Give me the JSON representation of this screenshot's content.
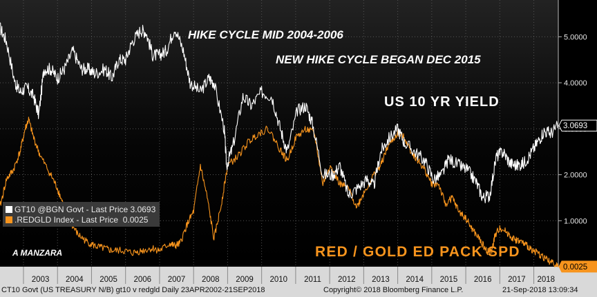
{
  "chart_data": {
    "type": "line",
    "x_range": [
      "2002-04-23",
      "2018-09-21"
    ],
    "x_tick_labels": [
      "2003",
      "2004",
      "2005",
      "2006",
      "2007",
      "2008",
      "2009",
      "2010",
      "2011",
      "2012",
      "2013",
      "2014",
      "2015",
      "2016",
      "2017",
      "2018"
    ],
    "y_ticks": [
      "5.0000",
      "4.0000",
      "3.0000",
      "2.0000",
      "1.0000"
    ],
    "ylim": [
      0,
      5.8
    ],
    "series": [
      {
        "name": "GT10 @BGN Govt - Last Price 3.0693",
        "color": "#ffffff",
        "last_value_label": "3.0693",
        "last_value": 3.0693,
        "x": [
          2002.31,
          2002.5,
          2002.75,
          2002.9,
          2003.1,
          2003.3,
          2003.45,
          2003.6,
          2003.8,
          2004.0,
          2004.2,
          2004.45,
          2004.7,
          2004.9,
          2005.1,
          2005.4,
          2005.6,
          2005.8,
          2006.0,
          2006.2,
          2006.45,
          2006.6,
          2006.8,
          2007.0,
          2007.2,
          2007.45,
          2007.7,
          2007.9,
          2008.2,
          2008.45,
          2008.6,
          2008.9,
          2008.97,
          2009.15,
          2009.45,
          2009.7,
          2010.0,
          2010.3,
          2010.55,
          2010.75,
          2011.05,
          2011.3,
          2011.5,
          2011.8,
          2012.1,
          2012.3,
          2012.55,
          2012.8,
          2013.1,
          2013.3,
          2013.5,
          2013.7,
          2014.0,
          2014.2,
          2014.5,
          2014.8,
          2015.05,
          2015.3,
          2015.5,
          2015.8,
          2016.05,
          2016.3,
          2016.5,
          2016.7,
          2016.9,
          2017.1,
          2017.3,
          2017.5,
          2017.7,
          2017.9,
          2018.1,
          2018.3,
          2018.5,
          2018.72
        ],
        "values": [
          5.2,
          4.9,
          4.0,
          3.8,
          3.9,
          3.7,
          3.3,
          4.3,
          4.3,
          4.1,
          4.3,
          4.7,
          4.3,
          4.3,
          4.2,
          4.3,
          4.1,
          4.5,
          4.5,
          4.9,
          5.15,
          5.1,
          4.6,
          4.6,
          4.7,
          5.2,
          4.7,
          4.0,
          3.8,
          4.1,
          4.0,
          3.0,
          2.2,
          2.6,
          3.7,
          3.5,
          3.8,
          3.7,
          3.0,
          2.5,
          3.4,
          3.5,
          3.1,
          2.0,
          2.0,
          2.2,
          1.55,
          1.7,
          1.9,
          1.75,
          2.5,
          2.75,
          3.0,
          2.7,
          2.5,
          2.3,
          1.9,
          2.0,
          2.35,
          2.2,
          2.1,
          1.85,
          1.5,
          1.55,
          2.4,
          2.5,
          2.25,
          2.2,
          2.25,
          2.45,
          2.7,
          2.95,
          2.9,
          3.07
        ]
      },
      {
        "name": ".REDGLD Index - Last Price  0.0025",
        "color": "#f7941d",
        "last_value_label": "0.0025",
        "last_value": 0.0025,
        "x": [
          2002.31,
          2002.5,
          2002.7,
          2002.9,
          2003.05,
          2003.15,
          2003.3,
          2003.5,
          2003.8,
          2004.0,
          2004.2,
          2004.35,
          2004.6,
          2004.85,
          2005.1,
          2005.35,
          2005.6,
          2005.9,
          2006.2,
          2006.5,
          2006.8,
          2007.0,
          2007.3,
          2007.45,
          2007.6,
          2007.8,
          2008.0,
          2008.2,
          2008.4,
          2008.6,
          2008.8,
          2009.0,
          2009.3,
          2009.6,
          2009.9,
          2010.2,
          2010.5,
          2010.75,
          2011.0,
          2011.3,
          2011.55,
          2011.8,
          2012.0,
          2012.3,
          2012.55,
          2012.8,
          2013.0,
          2013.3,
          2013.5,
          2013.7,
          2014.0,
          2014.2,
          2014.4,
          2014.6,
          2014.8,
          2015.0,
          2015.2,
          2015.4,
          2015.6,
          2015.8,
          2016.0,
          2016.2,
          2016.4,
          2016.6,
          2016.75,
          2016.85,
          2017.0,
          2017.2,
          2017.4,
          2017.6,
          2017.8,
          2018.0,
          2018.2,
          2018.4,
          2018.6,
          2018.72
        ],
        "values": [
          1.3,
          1.9,
          2.1,
          2.5,
          3.0,
          3.2,
          2.8,
          2.4,
          2.0,
          1.7,
          1.3,
          1.0,
          0.7,
          0.55,
          0.45,
          0.4,
          0.35,
          0.35,
          0.3,
          0.35,
          0.4,
          0.35,
          0.5,
          0.45,
          0.5,
          0.9,
          1.2,
          2.2,
          1.5,
          0.6,
          1.3,
          2.2,
          2.4,
          2.7,
          2.9,
          3.0,
          2.6,
          2.3,
          2.8,
          3.0,
          2.9,
          1.8,
          2.2,
          1.8,
          1.7,
          1.3,
          1.6,
          2.0,
          2.2,
          2.6,
          2.9,
          2.8,
          2.5,
          2.3,
          2.1,
          1.8,
          1.8,
          1.35,
          1.5,
          1.2,
          1.05,
          0.8,
          0.6,
          0.35,
          0.3,
          0.65,
          0.85,
          0.75,
          0.6,
          0.55,
          0.45,
          0.35,
          0.25,
          0.15,
          0.05,
          0.0025
        ]
      }
    ],
    "annotations": [
      "HIKE CYCLE MID 2004-2006",
      "NEW HIKE CYCLE BEGAN DEC 2015",
      "US 10 YR YIELD",
      "A MANZARA",
      "RED / GOLD ED PACK SPD"
    ],
    "grid": true
  },
  "legend": {
    "items": [
      {
        "label": "GT10 @BGN Govt - Last Price 3.0693",
        "color": "#ffffff"
      },
      {
        "label": ".REDGLD Index - Last Price  0.0025",
        "color": "#f7941d"
      }
    ]
  },
  "footer": {
    "left": "CT10 Govt (US TREASURY N/B) gt10 v redgld  Daily 23APR2002-21SEP2018",
    "center": "Copyright© 2018 Bloomberg Finance L.P.",
    "right": "21-Sep-2018 13:09:34"
  },
  "colors": {
    "background": "#000000",
    "white_series": "#ffffff",
    "orange_series": "#f7941d",
    "axis_band": "#d9d9d9"
  }
}
